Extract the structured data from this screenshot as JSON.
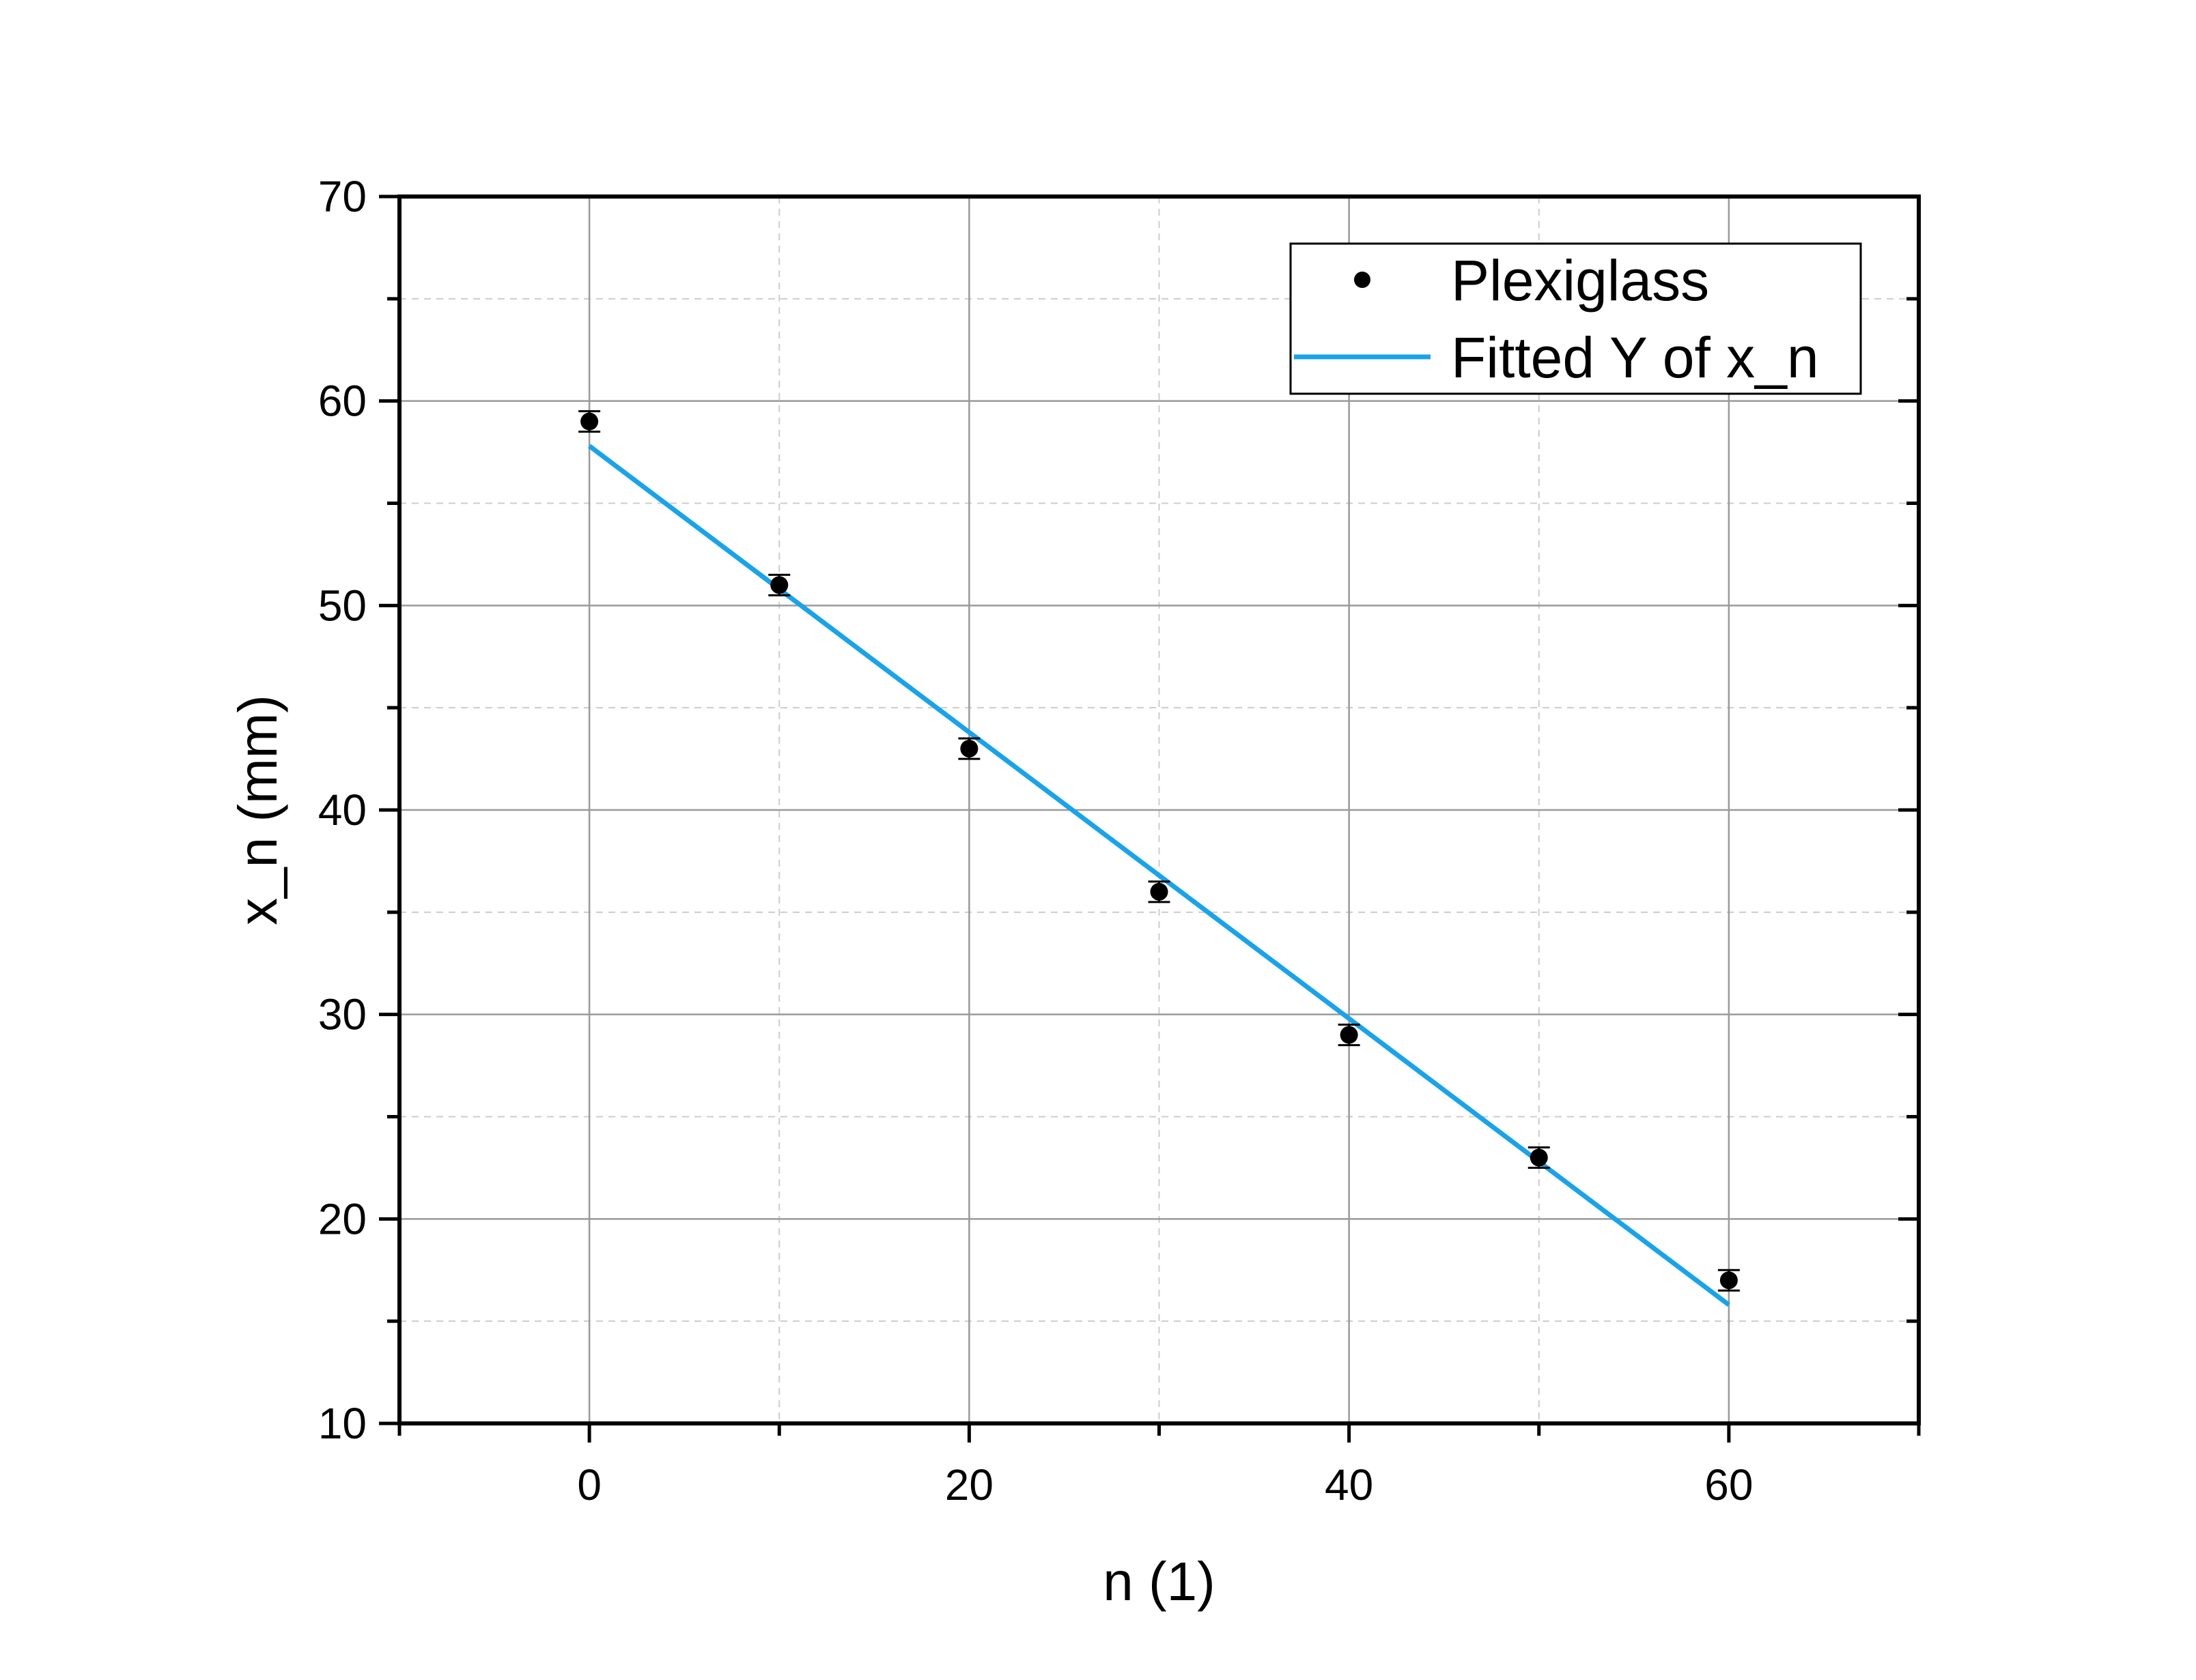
{
  "chart_data": {
    "type": "scatter",
    "xlabel": "n (1)",
    "ylabel": "x_n (mm)",
    "xlim": [
      -10,
      70
    ],
    "ylim": [
      10,
      70
    ],
    "xticks": [
      0,
      20,
      40,
      60
    ],
    "yticks": [
      10,
      20,
      30,
      40,
      50,
      60,
      70
    ],
    "grid": true,
    "legend": {
      "placement": "top-right"
    },
    "series": [
      {
        "name": "Plexiglass",
        "kind": "points-with-error-bars",
        "color": "#000000",
        "x": [
          0,
          10,
          20,
          30,
          40,
          50,
          60
        ],
        "y": [
          59,
          51,
          43,
          36,
          29,
          23,
          17
        ],
        "error": [
          0.5,
          0.5,
          0.5,
          0.5,
          0.5,
          0.5,
          0.5
        ]
      },
      {
        "name": "Fitted Y of x_n",
        "kind": "line",
        "color": "#1aa3e8",
        "x": [
          0,
          60
        ],
        "y": [
          57.8,
          15.8
        ]
      }
    ]
  }
}
